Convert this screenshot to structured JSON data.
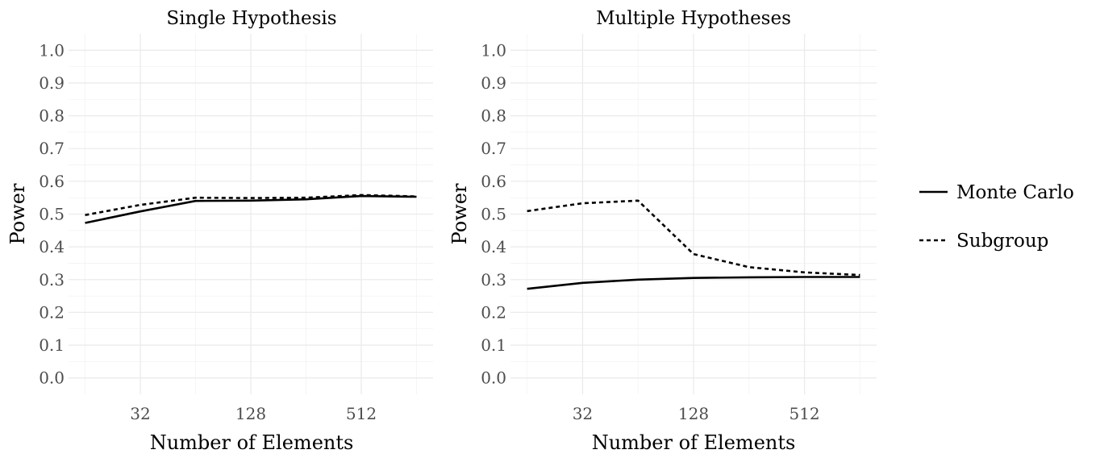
{
  "chart_data": [
    {
      "type": "line",
      "title": "Single Hypothesis",
      "xlabel": "Number of Elements",
      "ylabel": "Power",
      "x_scale": "log2",
      "x": [
        16,
        32,
        64,
        128,
        256,
        512,
        1024
      ],
      "xticks": [
        "32",
        "128",
        "512"
      ],
      "ylim": [
        0,
        1
      ],
      "yticks": [
        "0.0",
        "0.1",
        "0.2",
        "0.3",
        "0.4",
        "0.5",
        "0.6",
        "0.7",
        "0.8",
        "0.9",
        "1.0"
      ],
      "grid": true,
      "series": [
        {
          "name": "Monte Carlo",
          "values": [
            0.473,
            0.508,
            0.54,
            0.541,
            0.545,
            0.555,
            0.553
          ]
        },
        {
          "name": "Subgroup",
          "values": [
            0.497,
            0.528,
            0.55,
            0.549,
            0.55,
            0.558,
            0.554
          ]
        }
      ]
    },
    {
      "type": "line",
      "title": "Multiple Hypotheses",
      "xlabel": "Number of Elements",
      "ylabel": "Power",
      "x_scale": "log2",
      "x": [
        16,
        32,
        64,
        128,
        256,
        512,
        1024
      ],
      "xticks": [
        "32",
        "128",
        "512"
      ],
      "ylim": [
        0,
        1
      ],
      "yticks": [
        "0.0",
        "0.1",
        "0.2",
        "0.3",
        "0.4",
        "0.5",
        "0.6",
        "0.7",
        "0.8",
        "0.9",
        "1.0"
      ],
      "grid": true,
      "series": [
        {
          "name": "Monte Carlo",
          "values": [
            0.272,
            0.29,
            0.3,
            0.305,
            0.307,
            0.308,
            0.308
          ]
        },
        {
          "name": "Subgroup",
          "values": [
            0.509,
            0.533,
            0.541,
            0.378,
            0.338,
            0.322,
            0.314
          ]
        }
      ]
    }
  ],
  "legend": {
    "placement": "right",
    "items": [
      {
        "label": "Monte Carlo",
        "style": "solid"
      },
      {
        "label": "Subgroup",
        "style": "dashed"
      }
    ]
  },
  "colors": {
    "line": "#000000",
    "grid": "#ebebeb",
    "tick_text": "#4d4d4d"
  }
}
